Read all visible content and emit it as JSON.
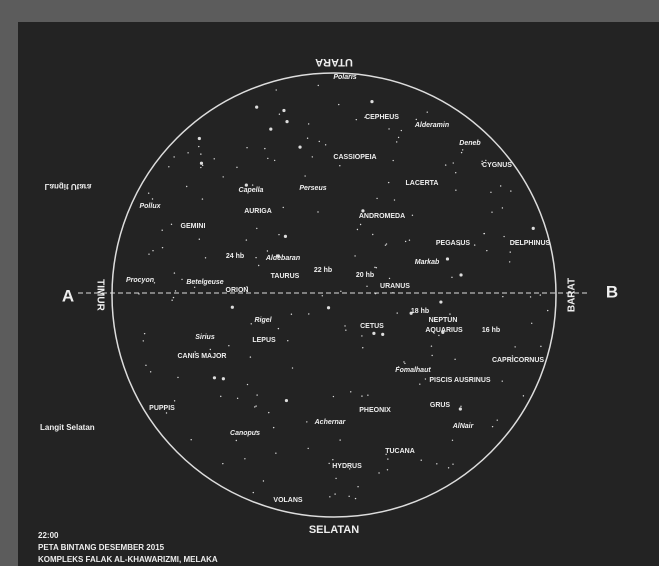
{
  "directions": {
    "north": "UTARA",
    "south": "SELATAN",
    "east": "TIMUR",
    "west": "BARAT",
    "left_marker": "A",
    "right_marker": "B"
  },
  "sky_regions": {
    "north": "Langit Utara",
    "south": "Langit Selatan"
  },
  "footer": {
    "time": "22:00",
    "title": "PETA BINTANG DESEMBER 2015",
    "place": "KOMPLEKS FALAK AL-KHAWARIZMI, MELAKA"
  },
  "labels": [
    "Polaris",
    "Alderamin",
    "CEPHEUS",
    "Deneb",
    "CYGNUS",
    "CASSIOPEIA",
    "LACERTA",
    "Capella",
    "Perseus",
    "AURIGA",
    "Pollux",
    "GEMINI",
    "ANDROMEDA",
    "PEGASUS",
    "DELPHINUS",
    "24 hb",
    "Aldebaran",
    "22 hb",
    "TAURUS",
    "Markab",
    "20 hb",
    "URANUS",
    "Procyon",
    "Betelgeuse",
    "ORION",
    "18 hb",
    "NEPTUN",
    "AQUARIUS",
    "16 hb",
    "Rigel",
    "CETUS",
    "CAPRICORNUS",
    "Sirius",
    "LEPUS",
    "CANIS MAJOR",
    "Fomalhaut",
    "PISCIS AUSRINUS",
    "GRUS",
    "PUPPIS",
    "PHEONIX",
    "Achernar",
    "AlNair",
    "Canopus",
    "TUCANA",
    "HYDRUS",
    "VOLANS"
  ]
}
